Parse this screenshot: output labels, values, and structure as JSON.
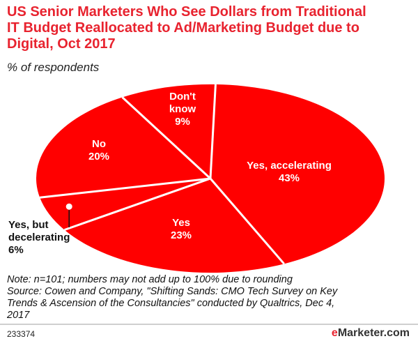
{
  "header": {
    "title_lines": [
      "US Senior Marketers Who See Dollars from Traditional",
      "IT Budget Reallocated to Ad/Marketing Budget due to",
      "Digital, Oct 2017"
    ],
    "subtitle": "% of respondents"
  },
  "chart_data": {
    "type": "pie",
    "title": "US Senior Marketers Who See Dollars from Traditional IT Budget Reallocated to Ad/Marketing Budget due to Digital, Oct 2017",
    "subtitle": "% of respondents",
    "unit": "%",
    "slices": [
      {
        "label": "Yes, accelerating",
        "value": 43,
        "value_label": "43%",
        "label_lines": [
          "Yes, accelerating"
        ]
      },
      {
        "label": "Yes",
        "value": 23,
        "value_label": "23%",
        "label_lines": [
          "Yes"
        ]
      },
      {
        "label": "Yes, but decelerating",
        "value": 6,
        "value_label": "6%",
        "label_lines": [
          "Yes, but",
          "decelerating"
        ]
      },
      {
        "label": "No",
        "value": 20,
        "value_label": "20%",
        "label_lines": [
          "No"
        ]
      },
      {
        "label": "Don't know",
        "value": 9,
        "value_label": "9%",
        "label_lines": [
          "Don't",
          "know"
        ]
      }
    ],
    "colors": {
      "slice": "#ff0000",
      "divider": "#ffffff",
      "outside_label": "#111111",
      "inside_label": "#ffffff"
    }
  },
  "footnote": {
    "lines": [
      "Note: n=101; numbers may not add up to 100% due to rounding",
      "Source: Cowen and Company, \"Shifting Sands: CMO Tech Survey on Key",
      "Trends & Ascension of the Consultancies\" conducted by Qualtrics, Dec 4,",
      "2017"
    ]
  },
  "footer": {
    "chart_id": "233374",
    "brand_prefix": "e",
    "brand_name": "Marketer",
    "brand_suffix": ".com"
  }
}
